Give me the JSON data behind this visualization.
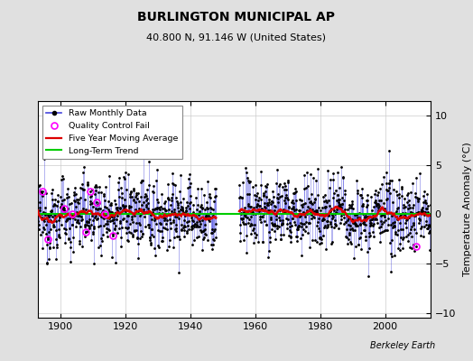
{
  "title": "BURLINGTON MUNICIPAL AP",
  "subtitle": "40.800 N, 91.146 W (United States)",
  "ylabel": "Temperature Anomaly (°C)",
  "credit": "Berkeley Earth",
  "year_start": 1893,
  "year_end": 2013,
  "ylim": [
    -10.5,
    11.5
  ],
  "yticks": [
    -10,
    -5,
    0,
    5,
    10
  ],
  "xticks": [
    1900,
    1920,
    1940,
    1960,
    1980,
    2000
  ],
  "xlim": [
    1893,
    2014
  ],
  "bg_color": "#e0e0e0",
  "plot_bg_color": "#ffffff",
  "raw_line_color": "#4444dd",
  "raw_dot_color": "#000000",
  "moving_avg_color": "#dd0000",
  "trend_color": "#00cc00",
  "qc_fail_color": "#ff00ff",
  "seed": 12345,
  "gap_start_year": 1948,
  "gap_end_year": 1955,
  "qc_fail_years": [
    1894.5,
    1896.0,
    1901.2,
    1903.5,
    1907.8,
    1909.3,
    1911.1,
    1913.6,
    1916.0,
    2009.5
  ]
}
